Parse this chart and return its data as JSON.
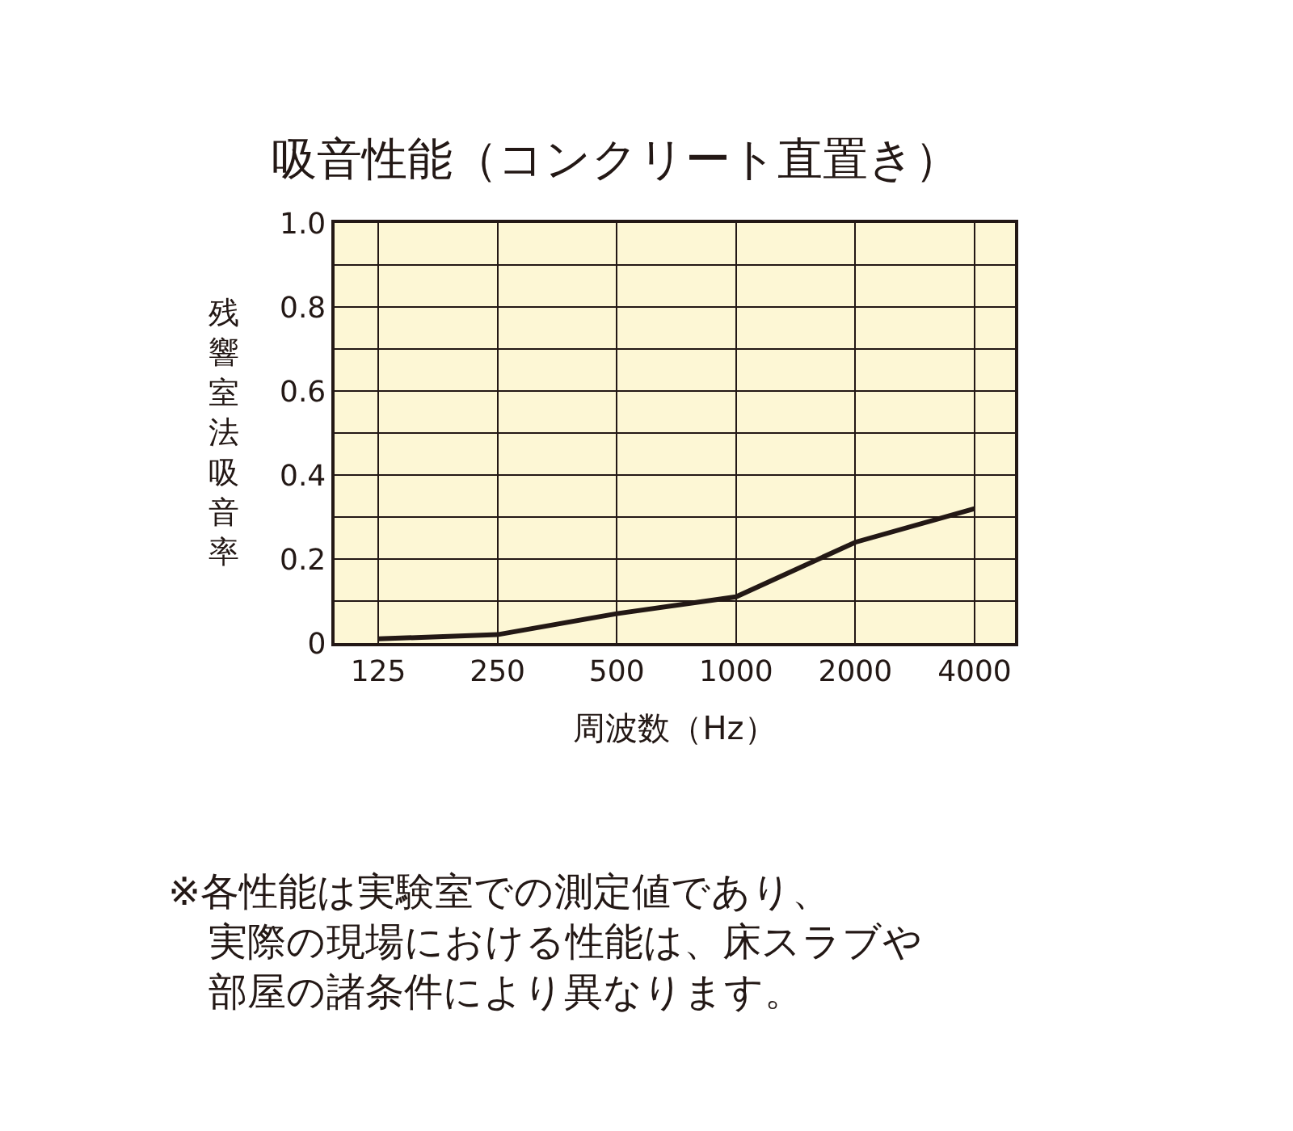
{
  "chart_data": {
    "type": "line",
    "title": "吸音性能（コンクリート直置き）",
    "xlabel": "周波数（Hz）",
    "ylabel": "残響室法吸音率",
    "x": [
      125,
      250,
      500,
      1000,
      2000,
      4000
    ],
    "series": [
      {
        "color": "#231815",
        "values": [
          0.01,
          0.02,
          0.07,
          0.11,
          0.24,
          0.32
        ]
      }
    ],
    "log": "x",
    "xlim": [
      97,
      5060
    ],
    "xticks": [
      125,
      250,
      500,
      1000,
      2000,
      4000
    ],
    "ylim": [
      0,
      1
    ],
    "yticks": [
      0,
      {
        "value": 0.1,
        "label": null
      },
      0.2,
      {
        "value": 0.3,
        "label": null
      },
      0.4,
      {
        "value": 0.5,
        "label": null
      },
      0.6,
      {
        "value": 0.7,
        "label": null
      },
      0.8,
      {
        "value": 0.9,
        "label": null
      },
      {
        "value": 1,
        "label": "1.0"
      }
    ],
    "grid": true,
    "marker": "none",
    "line_style": "solid",
    "annotations": [
      "※各性能は実験室での測定値であり、",
      "実際の現場における性能は、床スラブや",
      "部屋の諸条件により異なります。"
    ]
  }
}
